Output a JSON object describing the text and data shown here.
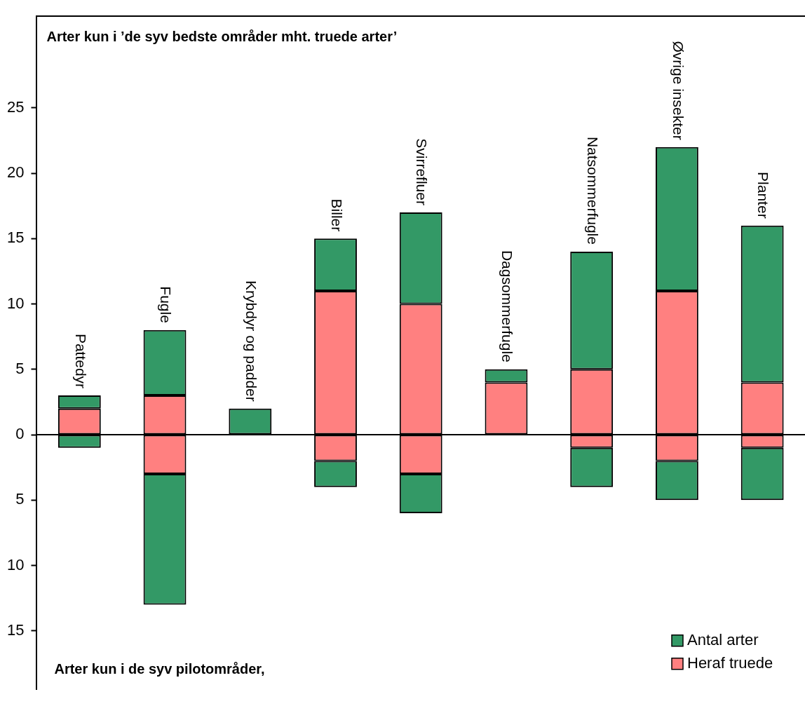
{
  "chart_data": {
    "type": "bar",
    "stacked": true,
    "title": "Arter kun i ’de syv bedste områder mht. truede arter’",
    "annotations": [
      "Arter kun i de syv pilotområder,"
    ],
    "categories": [
      "Pattedyr",
      "Fugle",
      "Krybdyr og padder",
      "Biller",
      "Svirrefluer",
      "Dagsommerfugle",
      "Natsommerfugle",
      "Øvrige insekter",
      "Planter"
    ],
    "series": [
      {
        "name": "Heraf truede",
        "color": "#ff8080",
        "values": [
          2,
          3,
          0,
          11,
          10,
          4,
          5,
          11,
          4
        ]
      },
      {
        "name": "Antal arter",
        "color": "#339966",
        "values": [
          1,
          5,
          2,
          4,
          7,
          1,
          9,
          11,
          12
        ]
      },
      {
        "color": "#ff8080",
        "values": [
          0,
          -3,
          0,
          -2,
          -3,
          0,
          -1,
          -2,
          -1
        ]
      },
      {
        "color": "#339966",
        "values": [
          -1,
          -10,
          0,
          -2,
          -3,
          0,
          -3,
          -3,
          -4
        ]
      }
    ],
    "ylim": [
      -19.5,
      32
    ],
    "yticks": [
      {
        "value": -15,
        "label": "15"
      },
      {
        "value": -10,
        "label": "10"
      },
      {
        "value": -5,
        "label": "5"
      },
      0,
      5,
      10,
      15,
      20,
      25
    ],
    "ref_lines": [
      {
        "axis": "y",
        "value": 0,
        "color": "#000000"
      }
    ],
    "tick_labels": "y",
    "grid": false,
    "legend": "bottom right"
  }
}
